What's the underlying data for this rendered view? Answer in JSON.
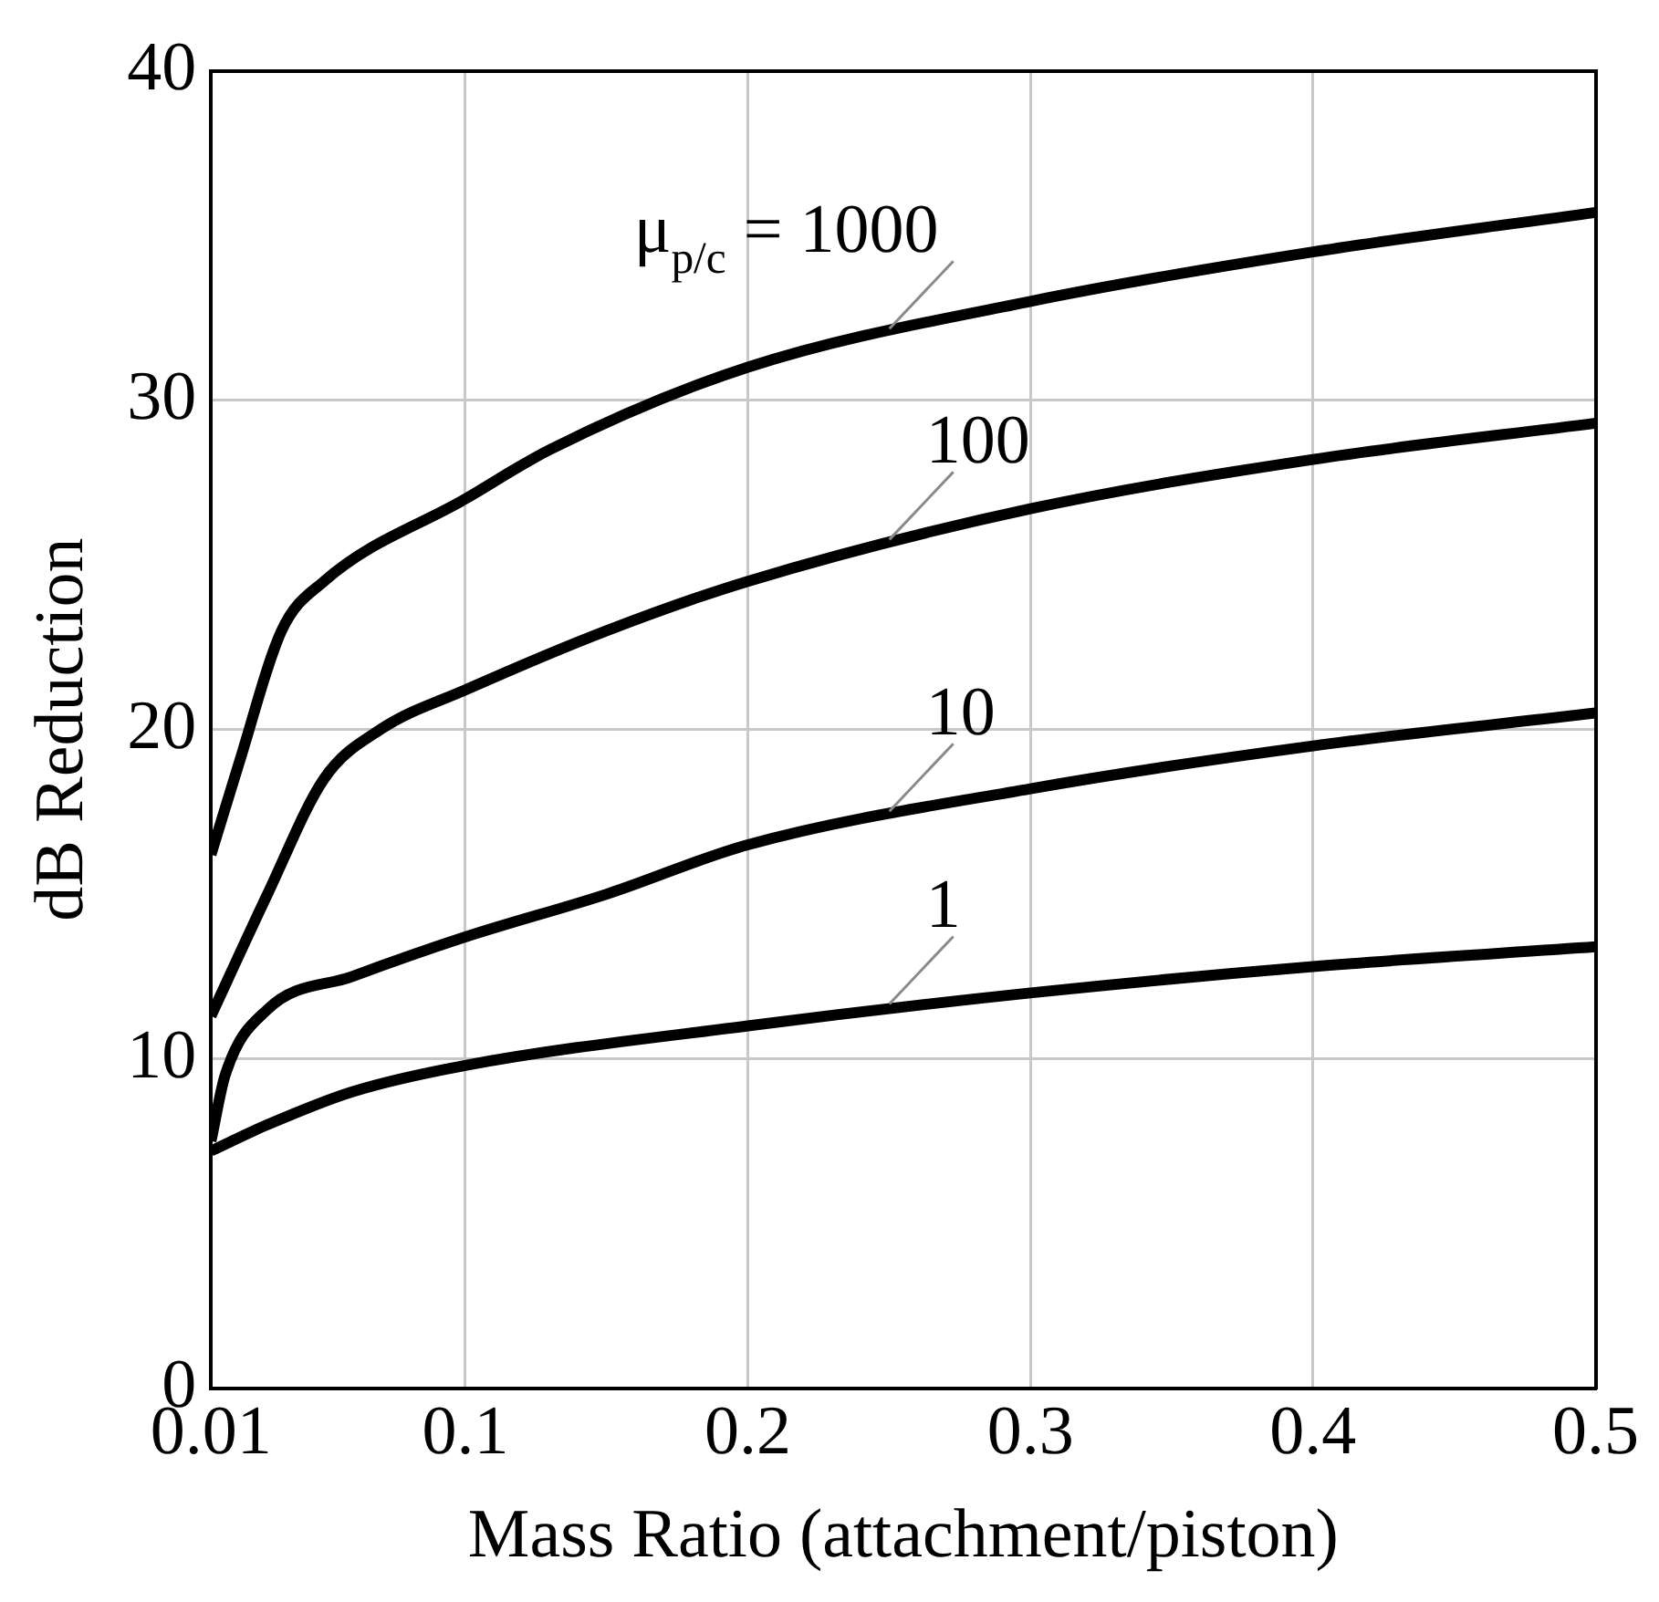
{
  "chart_data": {
    "type": "line",
    "xlabel": "Mass Ratio (attachment/piston)",
    "ylabel": "dB Reduction",
    "xlim": [
      0.01,
      0.5
    ],
    "xticks": [
      0.01,
      0.1,
      0.2,
      0.3,
      0.4,
      0.5
    ],
    "ylim": [
      0,
      40
    ],
    "yticks": [
      0,
      10,
      20,
      30,
      40
    ],
    "grid": true,
    "legend": false,
    "marker": "none",
    "line_style": "solid",
    "series": [
      {
        "name": "μ$_{p/c}$ = 1000",
        "color": "#000000",
        "x": [
          0.01,
          0.02,
          0.035,
          0.05,
          0.1,
          0.13,
          0.2,
          0.3,
          0.4,
          0.5
        ],
        "values": [
          16.2,
          19,
          23,
          24.5,
          27,
          28.5,
          31,
          33,
          34.5,
          35.7
        ]
      },
      {
        "name": "100",
        "color": "#000000",
        "x": [
          0.01,
          0.03,
          0.05,
          0.07,
          0.1,
          0.15,
          0.2,
          0.3,
          0.4,
          0.5
        ],
        "values": [
          11.3,
          15,
          18.5,
          20,
          21.2,
          23,
          24.5,
          26.7,
          28.2,
          29.3
        ]
      },
      {
        "name": "10",
        "color": "#000000",
        "x": [
          0.01,
          0.015,
          0.03,
          0.06,
          0.1,
          0.15,
          0.2,
          0.3,
          0.4,
          0.5
        ],
        "values": [
          7.5,
          9.5,
          11.5,
          12.5,
          13.7,
          15,
          16.5,
          18.2,
          19.5,
          20.5
        ]
      },
      {
        "name": "1",
        "color": "#000000",
        "x": [
          0.01,
          0.03,
          0.06,
          0.1,
          0.2,
          0.3,
          0.4,
          0.5
        ],
        "values": [
          7.2,
          8,
          9,
          9.8,
          11,
          12,
          12.8,
          13.4
        ]
      }
    ]
  }
}
